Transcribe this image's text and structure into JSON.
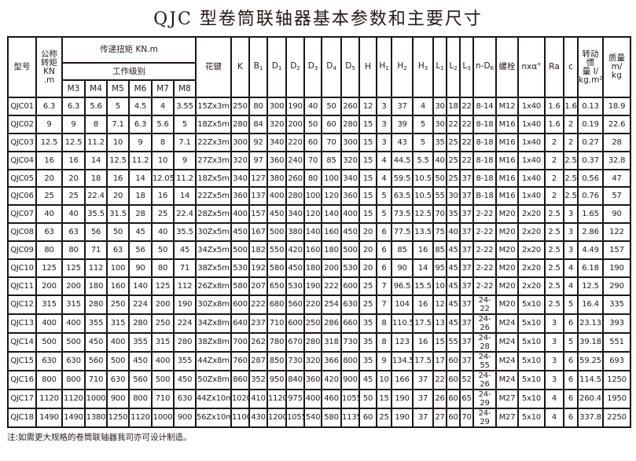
{
  "title": "QJC 型卷筒联轴器基本参数和主要尺寸",
  "header": {
    "model": "型号",
    "nominal_torque": "公称\n转矩\nKN .m",
    "transfer_torque": "传递扭矩 KN.m",
    "work_class": "工作级别",
    "classes": [
      "M3",
      "M4",
      "M5",
      "M6",
      "M7",
      "M8"
    ],
    "columns": [
      {
        "base": "花键",
        "sub": ""
      },
      {
        "base": "K",
        "sub": ""
      },
      {
        "base": "B",
        "sub": "1"
      },
      {
        "base": "D",
        "sub": "1"
      },
      {
        "base": "D",
        "sub": "2"
      },
      {
        "base": "D",
        "sub": "3"
      },
      {
        "base": "D",
        "sub": "4"
      },
      {
        "base": "D",
        "sub": "5"
      },
      {
        "base": "H",
        "sub": ""
      },
      {
        "base": "H",
        "sub": "1"
      },
      {
        "base": "H",
        "sub": "2"
      },
      {
        "base": "H",
        "sub": "3"
      },
      {
        "base": "L",
        "sub": "1"
      },
      {
        "base": "L",
        "sub": "2"
      },
      {
        "base": "L",
        "sub": "3"
      },
      {
        "base": "n-D",
        "sub": "6"
      },
      {
        "base": "螺栓",
        "sub": ""
      },
      {
        "base": "nxα°",
        "sub": ""
      },
      {
        "base": "Ra",
        "sub": ""
      },
      {
        "base": "c",
        "sub": ""
      },
      {
        "base": "转动惯\n量 I/\nkg.m²",
        "sub": ""
      },
      {
        "base": "质量 m/\nkg",
        "sub": ""
      }
    ]
  },
  "rows": [
    [
      "QJC01",
      "6.3",
      "6.3",
      "5.6",
      "5",
      "4.5",
      "4",
      "3.55",
      "15Zx3m",
      "250",
      "80",
      "300",
      "190",
      "40",
      "50",
      "260",
      "12",
      "3",
      "37",
      "4",
      "30",
      "18",
      "22",
      "8-14",
      "M12",
      "1x40",
      "1.6",
      "1.6",
      "0.13",
      "18.9"
    ],
    [
      "QJC02",
      "9",
      "9",
      "8",
      "7.1",
      "6.3",
      "5.6",
      "5",
      "18Zx5m",
      "280",
      "84",
      "320",
      "200",
      "50",
      "60",
      "280",
      "15",
      "3",
      "39",
      "5",
      "30",
      "22",
      "22",
      "8-18",
      "M16",
      "1x40",
      "1.6",
      "2",
      "0.19",
      "22.6"
    ],
    [
      "QJC03",
      "12.5",
      "12.5",
      "11.2",
      "10",
      "9",
      "8",
      "7.1",
      "22Zx3m",
      "300",
      "92",
      "340",
      "220",
      "60",
      "70",
      "300",
      "15",
      "3",
      "43",
      "5",
      "35",
      "25",
      "22",
      "8-18",
      "M16",
      "1x40",
      "2",
      "2",
      "0.27",
      "28"
    ],
    [
      "QJC04",
      "16",
      "16",
      "14",
      "12.5",
      "11.2",
      "10",
      "9",
      "27Zx3m",
      "320",
      "97",
      "360",
      "240",
      "70",
      "85",
      "320",
      "15",
      "4",
      "44.5",
      "5.5",
      "40",
      "25",
      "22",
      "8-18",
      "M16",
      "1x40",
      "2",
      "2.5",
      "0.37",
      "32.8"
    ],
    [
      "QJC05",
      "20",
      "20",
      "18",
      "16",
      "14",
      "12.05",
      "11.2",
      "18Zx5m",
      "340",
      "127",
      "380",
      "260",
      "80",
      "100",
      "340",
      "15",
      "4",
      "59.5",
      "10.5",
      "50",
      "25",
      "37",
      "8-18",
      "M16",
      "1x40",
      "2",
      "2.5",
      "0.56",
      "47"
    ],
    [
      "QJC06",
      "25",
      "25",
      "22.4",
      "20",
      "18",
      "16",
      "14",
      "22Zx5m",
      "360",
      "137",
      "400",
      "280",
      "100",
      "120",
      "360",
      "15",
      "5",
      "63.5",
      "10.5",
      "55",
      "30",
      "37",
      "B-18",
      "M16",
      "1x40",
      "2",
      "2.5",
      "0.76",
      "57"
    ],
    [
      "QJC07",
      "40",
      "40",
      "35.5",
      "31.5",
      "28",
      "25",
      "22.4",
      "28Zx5m",
      "400",
      "157",
      "450",
      "340",
      "120",
      "140",
      "400",
      "15",
      "5",
      "73.5",
      "12.5",
      "70",
      "35",
      "37",
      "2-22",
      "M20",
      "2x20",
      "2.5",
      "3",
      "1.65",
      "90"
    ],
    [
      "QJC08",
      "63",
      "63",
      "56",
      "50",
      "45",
      "40",
      "35.5",
      "30Zx5m",
      "450",
      "167",
      "500",
      "380",
      "140",
      "160",
      "450",
      "20",
      "6",
      "77.5",
      "13.5",
      "75",
      "40",
      "37",
      "2-22",
      "M20",
      "2x20",
      "2.5",
      "3",
      "2.86",
      "122"
    ],
    [
      "QJC09",
      "80",
      "80",
      "71",
      "63",
      "56",
      "50",
      "45",
      "34Zx5m",
      "500",
      "182",
      "550",
      "420",
      "160",
      "180",
      "500",
      "20",
      "6",
      "85",
      "16",
      "85",
      "45",
      "37",
      "2-22",
      "M20",
      "2x20",
      "2.5",
      "3",
      "4.49",
      "157"
    ],
    [
      "QJC10",
      "125",
      "125",
      "112",
      "100",
      "90",
      "80",
      "71",
      "38Zx5m",
      "530",
      "192",
      "580",
      "450",
      "180",
      "200",
      "530",
      "20",
      "6",
      "90",
      "14",
      "95",
      "45",
      "37",
      "2-22",
      "M20",
      "2x20",
      "2.5",
      "4",
      "6.18",
      "190"
    ],
    [
      "QJC11",
      "200",
      "200",
      "180",
      "160",
      "140",
      "125",
      "112",
      "26Zx8m",
      "580",
      "207",
      "650",
      "530",
      "190",
      "222",
      "600",
      "25",
      "7",
      "96.5",
      "15.5",
      "10",
      "45",
      "37",
      "2-22",
      "M20",
      "2x20",
      "2.5",
      "4",
      "12.5",
      "290"
    ],
    [
      "QJC12",
      "315",
      "315",
      "280",
      "250",
      "224",
      "200",
      "190",
      "30Zx8m",
      "600",
      "222",
      "680",
      "560",
      "220",
      "254",
      "630",
      "25",
      "7",
      "104",
      "16",
      "12",
      "45",
      "37",
      "24-22",
      "M20",
      "5x10",
      "2.5",
      "5",
      "16.4",
      "335"
    ],
    [
      "QJC13",
      "400",
      "400",
      "355",
      "315",
      "280",
      "250",
      "224",
      "34Zx8m",
      "640",
      "237",
      "710",
      "600",
      "250",
      "286",
      "660",
      "35",
      "8",
      "110.5",
      "17.5",
      "13",
      "45",
      "37",
      "24-26",
      "M24",
      "5x10",
      "3",
      "6",
      "23.13",
      "393"
    ],
    [
      "QJC14",
      "500",
      "500",
      "450",
      "400",
      "355",
      "315",
      "280",
      "38Zx8m",
      "700",
      "262",
      "780",
      "670",
      "280",
      "318",
      "730",
      "35",
      "8",
      "123",
      "16",
      "15",
      "55",
      "37",
      "24-28",
      "M24",
      "5x10",
      "3",
      "5",
      "39.18",
      "551"
    ],
    [
      "QJC15",
      "630",
      "630",
      "560",
      "500",
      "450",
      "400",
      "355",
      "44Zx8m",
      "760",
      "287",
      "850",
      "730",
      "320",
      "366",
      "800",
      "35",
      "9",
      "134.5",
      "17.5",
      "17",
      "60",
      "37",
      "24-55",
      "M24",
      "5x10",
      "3",
      "6",
      "59.25",
      "693"
    ],
    [
      "QJC16",
      "800",
      "800",
      "710",
      "630",
      "560",
      "500",
      "450",
      "50Zx8m",
      "860",
      "352",
      "950",
      "840",
      "360",
      "420",
      "900",
      "45",
      "10",
      "166",
      "37",
      "22",
      "60",
      "52",
      "24-26",
      "M24",
      "5x10",
      "3",
      "6",
      "114.5",
      "1250"
    ],
    [
      "QJC17",
      "1120",
      "1120",
      "1000",
      "900",
      "800",
      "710",
      "630",
      "44Zx10m",
      "1020",
      "410",
      "1120",
      "975",
      "400",
      "460",
      "1055",
      "50",
      "15",
      "190",
      "37",
      "26",
      "60",
      "65",
      "24-29",
      "M27",
      "5x10",
      "4",
      "6",
      "260.4",
      "1950"
    ],
    [
      "QJC18",
      "1490",
      "1490",
      "1380",
      "1250",
      "1120",
      "1000",
      "900",
      "56Zx10m",
      "1100",
      "430",
      "1200",
      "1055",
      "540",
      "580",
      "1135",
      "60",
      "25",
      "190",
      "37",
      "27",
      "60",
      "70",
      "24-29",
      "M27",
      "5x10",
      "4",
      "6",
      "337.8",
      "2250"
    ]
  ],
  "note": "注:如需更大规格的卷筒联轴器我司亦可设计制造。"
}
